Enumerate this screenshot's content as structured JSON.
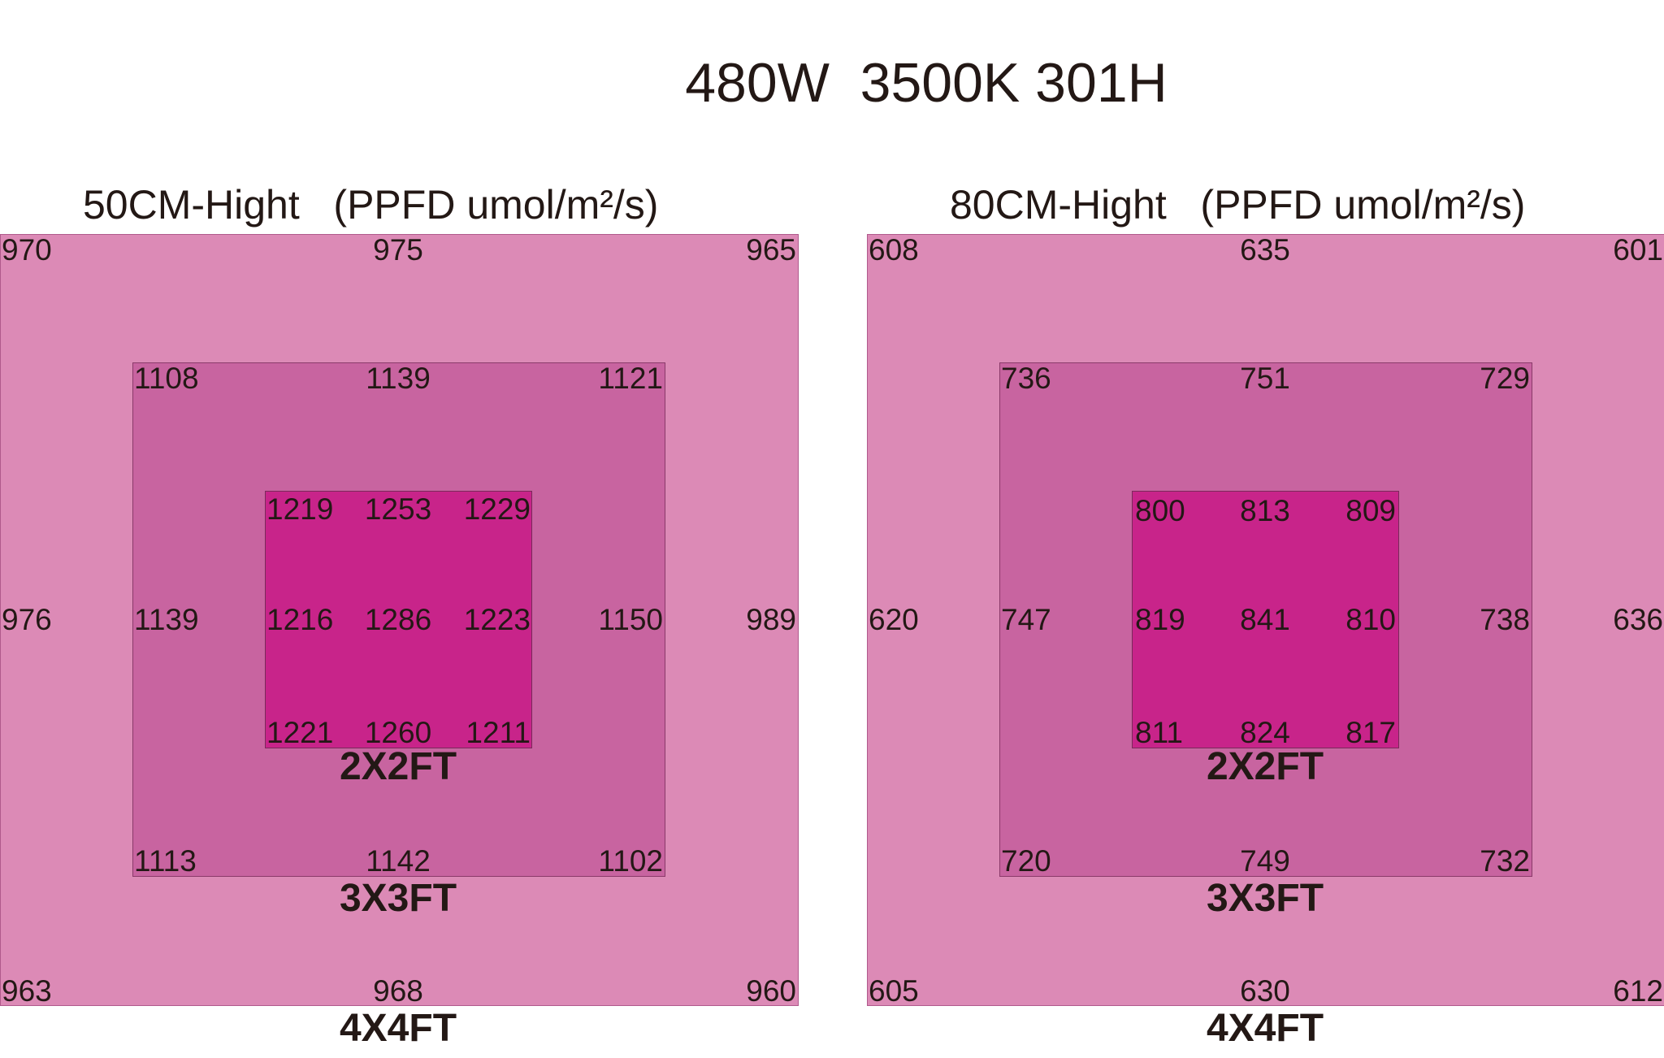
{
  "title": "480W  3500K 301H",
  "colors": {
    "zone_4x4": "#dc8ab6",
    "zone_3x3": "#c864a0",
    "zone_2x2": "#c8248a",
    "text": "#231815"
  },
  "panels": [
    {
      "heading": "50CM-Hight   (PPFD umol/m²/s)",
      "zone_labels": {
        "z2": "2X2FT",
        "z3": "3X3FT",
        "z4": "4X4FT"
      },
      "z4": {
        "tl": "970",
        "tc": "975",
        "tr": "965",
        "ml": "976",
        "mr": "989",
        "bl": "963",
        "bc": "968",
        "br": "960"
      },
      "z3": {
        "tl": "1108",
        "tc": "1139",
        "tr": "1121",
        "ml": "1139",
        "mr": "1150",
        "bl": "1113",
        "bc": "1142",
        "br": "1102"
      },
      "z2": {
        "tl": "1219",
        "tc": "1253",
        "tr": "1229",
        "ml": "1216",
        "mc": "1286",
        "mr": "1223",
        "bl": "1221",
        "bc": "1260",
        "br": "1211"
      }
    },
    {
      "heading": "80CM-Hight   (PPFD umol/m²/s)",
      "zone_labels": {
        "z2": "2X2FT",
        "z3": "3X3FT",
        "z4": "4X4FT"
      },
      "z4": {
        "tl": "608",
        "tc": "635",
        "tr": "601",
        "ml": "620",
        "mr": "636",
        "bl": "605",
        "bc": "630",
        "br": "612"
      },
      "z3": {
        "tl": "736",
        "tc": "751",
        "tr": "729",
        "ml": "747",
        "mr": "738",
        "bl": "720",
        "bc": "749",
        "br": "732"
      },
      "z2": {
        "tl": "800",
        "tc": "813",
        "tr": "809",
        "ml": "819",
        "mc": "841",
        "mr": "810",
        "bl": "811",
        "bc": "824",
        "br": "817"
      }
    }
  ]
}
